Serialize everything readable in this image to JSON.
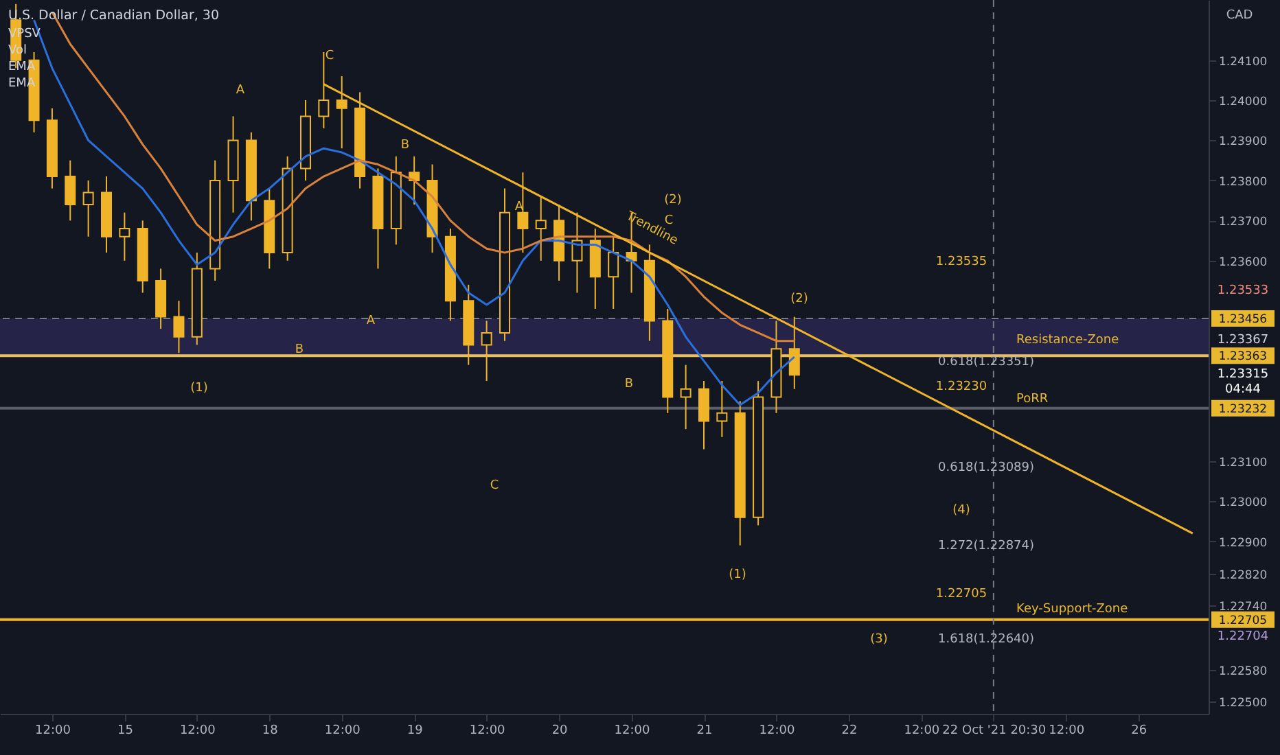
{
  "chart_data": {
    "type": "candlestick",
    "title": "U.S. Dollar / Canadian Dollar, 30",
    "ylabel": "CAD",
    "color": "#f0b429",
    "categories": [
      null,
      null,
      "12:00",
      null,
      null,
      null,
      "15",
      null,
      null,
      null,
      "12:00",
      null,
      null,
      null,
      "18",
      null,
      null,
      null,
      "12:00",
      null,
      null,
      null,
      "19",
      null,
      null,
      null,
      "12:00",
      null,
      null,
      null,
      "20",
      null,
      null,
      null,
      "12:00",
      null,
      null,
      null,
      "21",
      null,
      null,
      null,
      "12:00",
      null,
      null,
      null,
      "22",
      null,
      null,
      null,
      "12:00",
      null,
      null,
      null,
      "22 Oct '21  20:30",
      null,
      null,
      null,
      "12:00",
      null,
      null,
      null,
      "26",
      null,
      null,
      null
    ],
    "ohlc": [
      [
        1.242,
        1.2424,
        1.2408,
        1.241
      ],
      [
        1.241,
        1.2412,
        1.2392,
        1.2395
      ],
      [
        1.2395,
        1.2398,
        1.2378,
        1.2381
      ],
      [
        1.2381,
        1.2385,
        1.237,
        1.2374
      ],
      [
        1.2374,
        1.238,
        1.2366,
        1.2377
      ],
      [
        1.2377,
        1.2381,
        1.2362,
        1.2366
      ],
      [
        1.2366,
        1.2372,
        1.236,
        1.2368
      ],
      [
        1.2368,
        1.237,
        1.2352,
        1.2355
      ],
      [
        1.2355,
        1.2358,
        1.2343,
        1.2346
      ],
      [
        1.2346,
        1.235,
        1.2337,
        1.2341
      ],
      [
        1.2341,
        1.2362,
        1.2339,
        1.2358
      ],
      [
        1.2358,
        1.2385,
        1.2355,
        1.238
      ],
      [
        1.238,
        1.2396,
        1.2372,
        1.239
      ],
      [
        1.239,
        1.2392,
        1.237,
        1.2375
      ],
      [
        1.2375,
        1.2378,
        1.2358,
        1.2362
      ],
      [
        1.2362,
        1.2386,
        1.236,
        1.2383
      ],
      [
        1.2383,
        1.24,
        1.238,
        1.2396
      ],
      [
        1.2396,
        1.2412,
        1.2393,
        1.24
      ],
      [
        1.24,
        1.2406,
        1.2388,
        1.2398
      ],
      [
        1.2398,
        1.2402,
        1.2378,
        1.2381
      ],
      [
        1.2381,
        1.2383,
        1.2358,
        1.2368
      ],
      [
        1.2368,
        1.2386,
        1.2364,
        1.2382
      ],
      [
        1.2382,
        1.2386,
        1.2374,
        1.238
      ],
      [
        1.238,
        1.2384,
        1.2362,
        1.2366
      ],
      [
        1.2366,
        1.2368,
        1.2345,
        1.235
      ],
      [
        1.235,
        1.2354,
        1.2334,
        1.2339
      ],
      [
        1.2339,
        1.2345,
        1.233,
        1.2342
      ],
      [
        1.2342,
        1.2378,
        1.234,
        1.2372
      ],
      [
        1.2372,
        1.2382,
        1.2362,
        1.2368
      ],
      [
        1.2368,
        1.2376,
        1.236,
        1.237
      ],
      [
        1.237,
        1.2374,
        1.2355,
        1.236
      ],
      [
        1.236,
        1.2372,
        1.2352,
        1.2365
      ],
      [
        1.2365,
        1.2368,
        1.2348,
        1.2356
      ],
      [
        1.2356,
        1.2366,
        1.2348,
        1.2362
      ],
      [
        1.2362,
        1.2372,
        1.2352,
        1.236
      ],
      [
        1.236,
        1.2364,
        1.234,
        1.2345
      ],
      [
        1.2345,
        1.2348,
        1.2322,
        1.2326
      ],
      [
        1.2326,
        1.2334,
        1.2318,
        1.2328
      ],
      [
        1.2328,
        1.233,
        1.2313,
        1.232
      ],
      [
        1.232,
        1.233,
        1.2316,
        1.2322
      ],
      [
        1.2322,
        1.2325,
        1.2289,
        1.2296
      ],
      [
        1.2296,
        1.233,
        1.2294,
        1.2326
      ],
      [
        1.2326,
        1.2345,
        1.2322,
        1.2338
      ],
      [
        1.2338,
        1.2346,
        1.2328,
        1.23315
      ],
      null,
      null,
      null,
      null,
      null,
      null,
      null,
      null,
      null,
      null,
      null,
      null,
      null,
      null,
      null,
      null,
      null,
      null,
      null,
      null,
      null,
      null
    ],
    "series": [
      {
        "type": "line",
        "color": "#2a6fdb",
        "values": [
          null,
          1.242,
          1.2408,
          1.2399,
          1.239,
          1.2386,
          1.2382,
          1.2378,
          1.2372,
          1.2365,
          1.2359,
          1.2362,
          1.2369,
          1.2375,
          1.2378,
          1.2382,
          1.2386,
          1.2388,
          1.2387,
          1.2385,
          1.2382,
          1.2379,
          1.2375,
          1.2368,
          1.2359,
          1.2352,
          1.2349,
          1.2352,
          1.236,
          1.2365,
          1.2365,
          1.2364,
          1.2364,
          1.2362,
          1.236,
          1.2356,
          1.2349,
          1.2341,
          1.2335,
          1.2329,
          1.2324,
          1.2327,
          1.2332,
          1.2336,
          null,
          null,
          null,
          null,
          null,
          null,
          null,
          null,
          null,
          null,
          null,
          null,
          null,
          null,
          null,
          null,
          null,
          null,
          null,
          null,
          null,
          null
        ]
      },
      {
        "type": "line",
        "color": "#d9823b",
        "values": [
          null,
          null,
          1.2422,
          1.2414,
          1.2408,
          1.2402,
          1.2396,
          1.2389,
          1.2383,
          1.2376,
          1.2369,
          1.2365,
          1.2366,
          1.2368,
          1.237,
          1.2373,
          1.2378,
          1.2381,
          1.2383,
          1.2385,
          1.2384,
          1.2382,
          1.238,
          1.2376,
          1.237,
          1.2366,
          1.2363,
          1.2362,
          1.2363,
          1.2365,
          1.2366,
          1.2366,
          1.2366,
          1.2366,
          1.2365,
          1.2362,
          1.236,
          1.2356,
          1.2351,
          1.2347,
          1.2344,
          1.2342,
          1.234,
          1.234,
          null,
          null,
          null,
          null,
          null,
          null,
          null,
          null,
          null,
          null,
          null,
          null,
          null,
          null,
          null,
          null,
          null,
          null,
          null,
          null,
          null,
          null
        ]
      },
      {
        "type": "line",
        "color": "#f0b429",
        "values": [
          null,
          null,
          null,
          null,
          null,
          null,
          null,
          null,
          null,
          null,
          null,
          null,
          null,
          null,
          null,
          null,
          null,
          1.2404,
          null,
          null,
          null,
          null,
          null,
          null,
          null,
          null,
          null,
          null,
          null,
          null,
          null,
          null,
          null,
          null,
          null,
          null,
          null,
          null,
          null,
          null,
          null,
          null,
          null,
          null,
          null,
          null,
          null,
          null,
          null,
          null,
          null,
          null,
          null,
          null,
          null,
          null,
          null,
          null,
          null,
          null,
          null,
          null,
          null,
          null,
          null,
          1.2292
        ]
      }
    ],
    "ylim": [
      1.2247,
      1.2425
    ],
    "yticks": [
      {
        "value": 1.241,
        "label": "1.24100"
      },
      {
        "value": 1.24,
        "label": "1.24000"
      },
      {
        "value": 1.239,
        "label": "1.23900"
      },
      {
        "value": 1.238,
        "label": "1.23800"
      },
      {
        "value": 1.237,
        "label": "1.23700"
      },
      {
        "value": 1.236,
        "label": "1.23600"
      },
      {
        "value": 1.231,
        "label": "1.23100"
      },
      {
        "value": 1.23,
        "label": "1.23000"
      },
      {
        "value": 1.229,
        "label": "1.22900"
      },
      {
        "value": 1.2282,
        "label": "1.22820"
      },
      {
        "value": 1.2274,
        "label": "1.22740"
      },
      {
        "value": 1.2258,
        "label": "1.22580"
      },
      {
        "value": 1.225,
        "label": "1.22500"
      }
    ],
    "bands": [
      {
        "axis": "y",
        "from": 1.23363,
        "to": 1.23456,
        "color": "#2a2852"
      }
    ],
    "ref_lines": [
      {
        "axis": "y",
        "value": 1.23456,
        "label": "1.23456",
        "line_style": "dashed",
        "color": "#787b86"
      },
      {
        "axis": "y",
        "value": 1.23363,
        "label": "1.23363",
        "color": "#e8c060"
      },
      {
        "axis": "y",
        "value": 1.23232,
        "label": "1.23232",
        "color": "#5d606b"
      },
      {
        "axis": "y",
        "value": 1.22705,
        "label": "1.22705",
        "color": "#f0b429"
      },
      {
        "axis": "x",
        "value": "22 Oct '21  20:30",
        "line_style": "dashed",
        "color": "#787b86"
      }
    ],
    "annotations": [
      "VPSV",
      "Vol",
      "EMA",
      "EMA",
      "C",
      "A",
      "B",
      "A",
      "B",
      "(1)",
      "A",
      "C",
      "(2)",
      "C",
      "B",
      "(2)",
      "(1)",
      "(4)",
      "(3)",
      "Trendline",
      "Resistance-Zone",
      "PoRR",
      "Key-Support-Zone",
      "0.618(1.23351)",
      "0.618(1.23089)",
      "1.272(1.22874)",
      "1.618(1.22640)",
      "1.23535",
      "1.23230",
      "1.22705",
      "1.23533",
      "1.23367",
      "1.23315",
      "04:44",
      "1.22704"
    ],
    "grid": false
  }
}
